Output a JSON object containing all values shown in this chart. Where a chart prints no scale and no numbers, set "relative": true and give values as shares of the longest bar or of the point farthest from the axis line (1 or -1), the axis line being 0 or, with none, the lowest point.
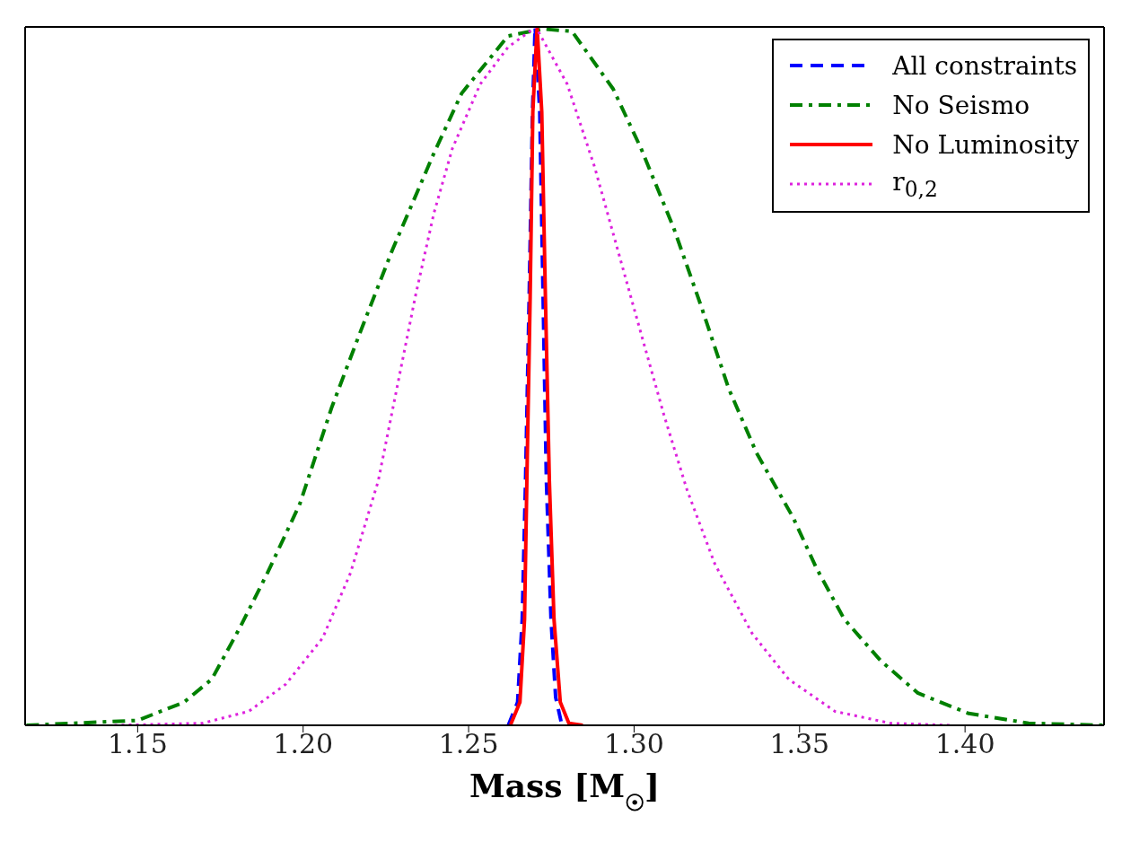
{
  "chart_data": {
    "type": "line",
    "xlabel": "Mass [M$_{☉}$]",
    "relative": true,
    "legend": "top right",
    "xlim": [
      1.116,
      1.442
    ],
    "xticks": [
      {
        "value": 1.15,
        "label": "1.15"
      },
      {
        "value": 1.2,
        "label": "1.20"
      },
      {
        "value": 1.25,
        "label": "1.25"
      },
      {
        "value": 1.3,
        "label": "1.30"
      },
      {
        "value": 1.35,
        "label": "1.35"
      },
      {
        "value": 1.4,
        "label": "1.40"
      }
    ],
    "tick_labels": "x",
    "series": [
      {
        "name": "All constraints",
        "color": "#0000ff",
        "line_style": "dashed",
        "x": [
          1.262,
          1.2648,
          1.2662,
          1.2672,
          1.2683,
          1.2693,
          1.2701,
          1.2715,
          1.2725,
          1.2735,
          1.2749,
          1.2763,
          1.2782
        ],
        "values": [
          0,
          0.033,
          0.152,
          0.35,
          0.614,
          0.878,
          1,
          0.878,
          0.614,
          0.35,
          0.152,
          0.04,
          0
        ]
      },
      {
        "name": "No Seismo",
        "color": "#008000",
        "line_style": "dashdot",
        "x": [
          1.1164,
          1.15,
          1.164,
          1.1724,
          1.1808,
          1.1892,
          1.199,
          1.2087,
          1.2171,
          1.2269,
          1.2395,
          1.2479,
          1.2619,
          1.2724,
          1.2812,
          1.2937,
          1.3021,
          1.3119,
          1.3202,
          1.3286,
          1.337,
          1.3481,
          1.3551,
          1.3635,
          1.3746,
          1.3858,
          1.4011,
          1.4192,
          1.442
        ],
        "values": [
          0,
          0.007,
          0.033,
          0.066,
          0.139,
          0.218,
          0.317,
          0.456,
          0.561,
          0.68,
          0.819,
          0.905,
          0.987,
          0.997,
          0.994,
          0.911,
          0.826,
          0.713,
          0.601,
          0.482,
          0.39,
          0.297,
          0.225,
          0.152,
          0.092,
          0.046,
          0.017,
          0.003,
          0
        ]
      },
      {
        "name": "No Luminosity",
        "color": "#ff0000",
        "line_style": "solid",
        "x": [
          1.2627,
          1.2655,
          1.2669,
          1.2676,
          1.2686,
          1.2694,
          1.2707,
          1.2721,
          1.2732,
          1.2744,
          1.2758,
          1.2777,
          1.2803,
          1.2845
        ],
        "values": [
          0.001,
          0.033,
          0.152,
          0.35,
          0.614,
          0.878,
          1,
          0.878,
          0.614,
          0.35,
          0.152,
          0.033,
          0.003,
          0
        ]
      },
      {
        "name": "r$_{0,2}$",
        "color": "#dd22dd",
        "line_style": "dotted",
        "x": [
          1.143,
          1.1696,
          1.1836,
          1.1948,
          1.2059,
          1.2143,
          1.2227,
          1.2283,
          1.2339,
          1.2395,
          1.2451,
          1.2535,
          1.2619,
          1.2703,
          1.2798,
          1.2881,
          1.2951,
          1.3021,
          1.3091,
          1.316,
          1.3244,
          1.3356,
          1.3467,
          1.3607,
          1.3774,
          1.3955
        ],
        "values": [
          0,
          0.003,
          0.02,
          0.059,
          0.125,
          0.218,
          0.35,
          0.482,
          0.614,
          0.733,
          0.826,
          0.918,
          0.971,
          1,
          0.918,
          0.799,
          0.68,
          0.561,
          0.443,
          0.337,
          0.231,
          0.132,
          0.066,
          0.02,
          0.003,
          0
        ]
      }
    ]
  }
}
